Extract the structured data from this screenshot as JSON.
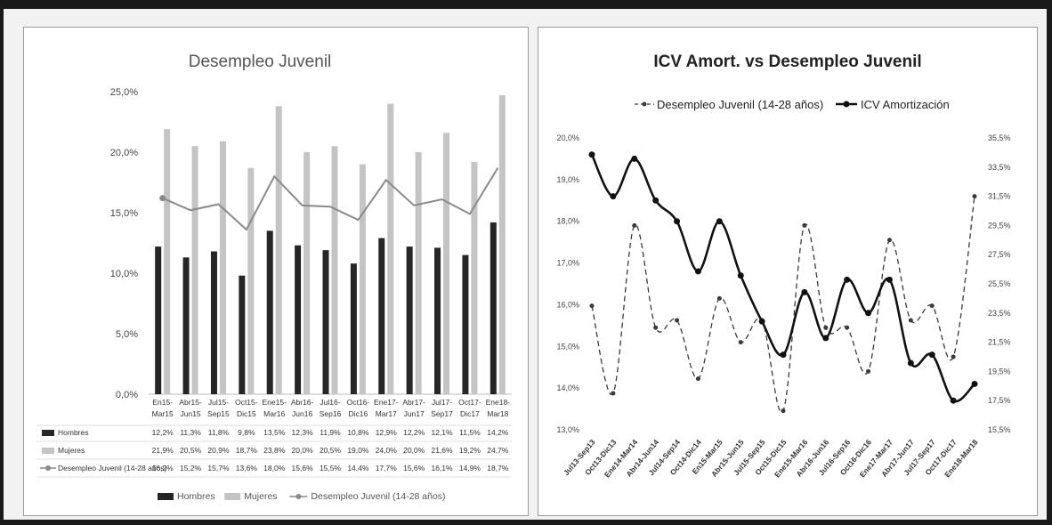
{
  "chart_data": [
    {
      "type": "bar",
      "title": "Desempleo Juvenil",
      "categories": [
        "Ene15-Mar15",
        "Abr15-Jun15",
        "Jul15-Sep15",
        "Oct15-Dic15",
        "Ene15-Mar16",
        "Abr16-Jun16",
        "Jul16-Sep16",
        "Oct16-Dic16",
        "Ene17-Mar17",
        "Abr17-Jun17",
        "Jul17-Sep17",
        "Oct17-Dic17",
        "Ene18-Mar18"
      ],
      "category_lines": [
        [
          "En15-",
          "Mar15"
        ],
        [
          "Abr15-",
          "Jun15"
        ],
        [
          "Jul15-",
          "Sep15"
        ],
        [
          "Oct15-",
          "Dic15"
        ],
        [
          "Ene15-",
          "Mar16"
        ],
        [
          "Abr16-",
          "Jun16"
        ],
        [
          "Jul16-",
          "Sep16"
        ],
        [
          "Oct16-",
          "Dic16"
        ],
        [
          "Ene17-",
          "Mar17"
        ],
        [
          "Abr17-",
          "Jun17"
        ],
        [
          "Jul17-",
          "Sep17"
        ],
        [
          "Oct17-",
          "Dic17"
        ],
        [
          "Ene18-",
          "Mar18"
        ]
      ],
      "yticks": [
        "0,0%",
        "5,0%",
        "10,0%",
        "15,0%",
        "20,0%",
        "25,0%"
      ],
      "ylim": [
        0,
        25
      ],
      "series": [
        {
          "name": "Hombres",
          "kind": "bar",
          "color": "#262626",
          "values": [
            12.2,
            11.3,
            11.8,
            9.8,
            13.5,
            12.3,
            11.9,
            10.8,
            12.9,
            12.2,
            12.1,
            11.5,
            14.2
          ],
          "labels": [
            "12,2%",
            "11,3%",
            "11,8%",
            "9,8%",
            "13,5%",
            "12,3%",
            "11,9%",
            "10,8%",
            "12,9%",
            "12,2%",
            "12,1%",
            "11,5%",
            "14,2%"
          ]
        },
        {
          "name": "Mujeres",
          "kind": "bar",
          "color": "#c4c4c4",
          "values": [
            21.9,
            20.5,
            20.9,
            18.7,
            23.8,
            20.0,
            20.5,
            19.0,
            24.0,
            20.0,
            21.6,
            19.2,
            24.7
          ],
          "labels": [
            "21,9%",
            "20,5%",
            "20,9%",
            "18,7%",
            "23,8%",
            "20,0%",
            "20,5%",
            "19,0%",
            "24,0%",
            "20,0%",
            "21,6%",
            "19,2%",
            "24,7%"
          ]
        },
        {
          "name": "Desempleo Juvenil (14-28 años)",
          "kind": "line",
          "color": "#8a8a8a",
          "values": [
            16.2,
            15.2,
            15.7,
            13.6,
            18.0,
            15.6,
            15.5,
            14.4,
            17.7,
            15.6,
            16.1,
            14.9,
            18.7
          ],
          "labels": [
            "16,2%",
            "15,2%",
            "15,7%",
            "13,6%",
            "18,0%",
            "15,6%",
            "15,5%",
            "14,4%",
            "17,7%",
            "15,6%",
            "16,1%",
            "14,9%",
            "18,7%"
          ]
        }
      ],
      "legend": "bottom",
      "data_table": true
    },
    {
      "type": "line",
      "title": "ICV Amort. vs Desempleo Juvenil",
      "categories": [
        "Jul13-Sep13",
        "Oct13-Dic13",
        "Ene14-Mar14",
        "Abr14-Jun14",
        "Jul14-Sep14",
        "Oct14-Dic14",
        "En15-Mar15",
        "Abr15-Jun15",
        "Jul15-Sep15",
        "Oct15-Dic15",
        "Ene15-Mar16",
        "Abr16-Jun16",
        "Jul16-Sep16",
        "Oct16-Dic16",
        "Ene17-Mar17",
        "Abr17-Jun17",
        "Jul17-Sep17",
        "Oct17-Dic17",
        "Ene18-Mar18"
      ],
      "y_left_ticks": [
        "13,0%",
        "14,0%",
        "15,0%",
        "16,0%",
        "17,0%",
        "18,0%",
        "19,0%",
        "20,0%"
      ],
      "y_left_lim": [
        13,
        20
      ],
      "y_right_ticks": [
        "15,5%",
        "17,5%",
        "19,5%",
        "21,5%",
        "23,5%",
        "25,5%",
        "27,5%",
        "29,5%",
        "31,5%",
        "33,5%",
        "35,5%"
      ],
      "y_right_lim": [
        15.5,
        35.5
      ],
      "series": [
        {
          "name": "Desempleo Juvenil (14-28 años)",
          "axis": "right",
          "dashed": true,
          "color": "#3a3a3a",
          "values": [
            24.0,
            18.0,
            29.5,
            22.5,
            23.0,
            19.0,
            24.5,
            21.5,
            23.0,
            16.8,
            29.5,
            22.5,
            22.5,
            19.5,
            28.5,
            23.0,
            24.0,
            20.5,
            31.5
          ]
        },
        {
          "name": "ICV Amortización",
          "axis": "left",
          "dashed": false,
          "color": "#111111",
          "values": [
            19.6,
            18.6,
            19.5,
            18.5,
            18.0,
            16.8,
            18.0,
            16.7,
            15.6,
            14.8,
            16.3,
            15.2,
            16.6,
            15.8,
            16.6,
            14.6,
            14.8,
            13.7,
            14.1
          ]
        }
      ],
      "legend": "top"
    }
  ]
}
